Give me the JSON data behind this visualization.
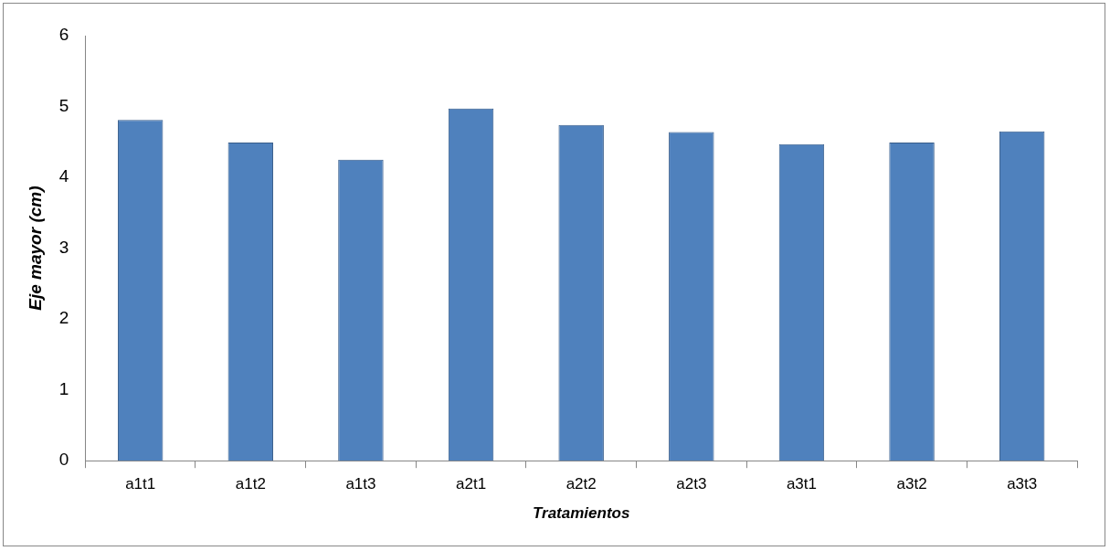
{
  "chart_data": {
    "type": "bar",
    "xlabel": "Tratamientos",
    "ylabel": "Eje mayor (cm)",
    "categories": [
      "a1t1",
      "a1t2",
      "a1t3",
      "a2t1",
      "a2t2",
      "a2t3",
      "a3t1",
      "a3t2",
      "a3t3"
    ],
    "values": [
      4.81,
      4.49,
      4.25,
      4.97,
      4.74,
      4.64,
      4.47,
      4.49,
      4.65
    ],
    "color": "#4f81bd",
    "ylim": [
      0,
      6
    ],
    "yticks": [
      0,
      1,
      2,
      3,
      4,
      5,
      6
    ],
    "grid": false,
    "legend": false
  }
}
